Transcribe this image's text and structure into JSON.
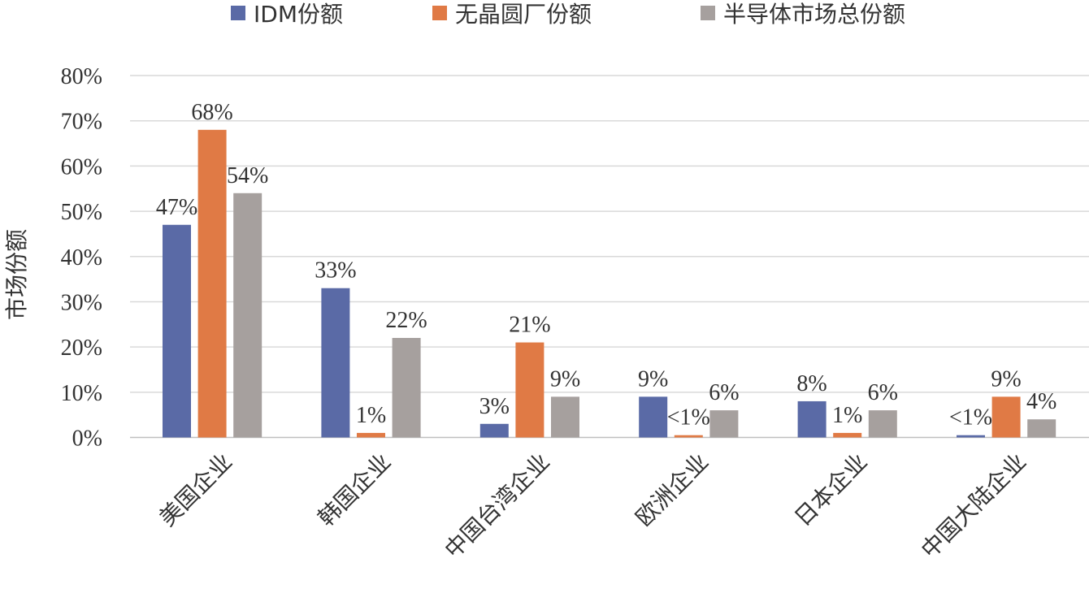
{
  "chart_data": {
    "type": "bar",
    "ylabel": "市场份额",
    "ylim": [
      0,
      80
    ],
    "yticks": [
      0,
      10,
      20,
      30,
      40,
      50,
      60,
      70,
      80
    ],
    "ytick_labels": [
      "0%",
      "10%",
      "20%",
      "30%",
      "40%",
      "50%",
      "60%",
      "70%",
      "80%"
    ],
    "grid": true,
    "legend_position": "top",
    "categories": [
      "美国企业",
      "韩国企业",
      "中国台湾企业",
      "欧洲企业",
      "日本企业",
      "中国大陆企业"
    ],
    "series": [
      {
        "name": "IDM份额",
        "color": "#5a6aa6",
        "values": [
          47,
          33,
          3,
          9,
          8,
          0.5
        ],
        "labels": [
          "47%",
          "33%",
          "3%",
          "9%",
          "8%",
          "<1%"
        ]
      },
      {
        "name": "无晶圆厂份额",
        "color": "#e07a45",
        "values": [
          68,
          1,
          21,
          0.5,
          1,
          9
        ],
        "labels": [
          "68%",
          "1%",
          "21%",
          "<1%",
          "1%",
          "9%"
        ]
      },
      {
        "name": "半导体市场总份额",
        "color": "#a6a09e",
        "values": [
          54,
          22,
          9,
          6,
          6,
          4
        ],
        "labels": [
          "54%",
          "22%",
          "9%",
          "6%",
          "6%",
          "4%"
        ]
      }
    ]
  }
}
